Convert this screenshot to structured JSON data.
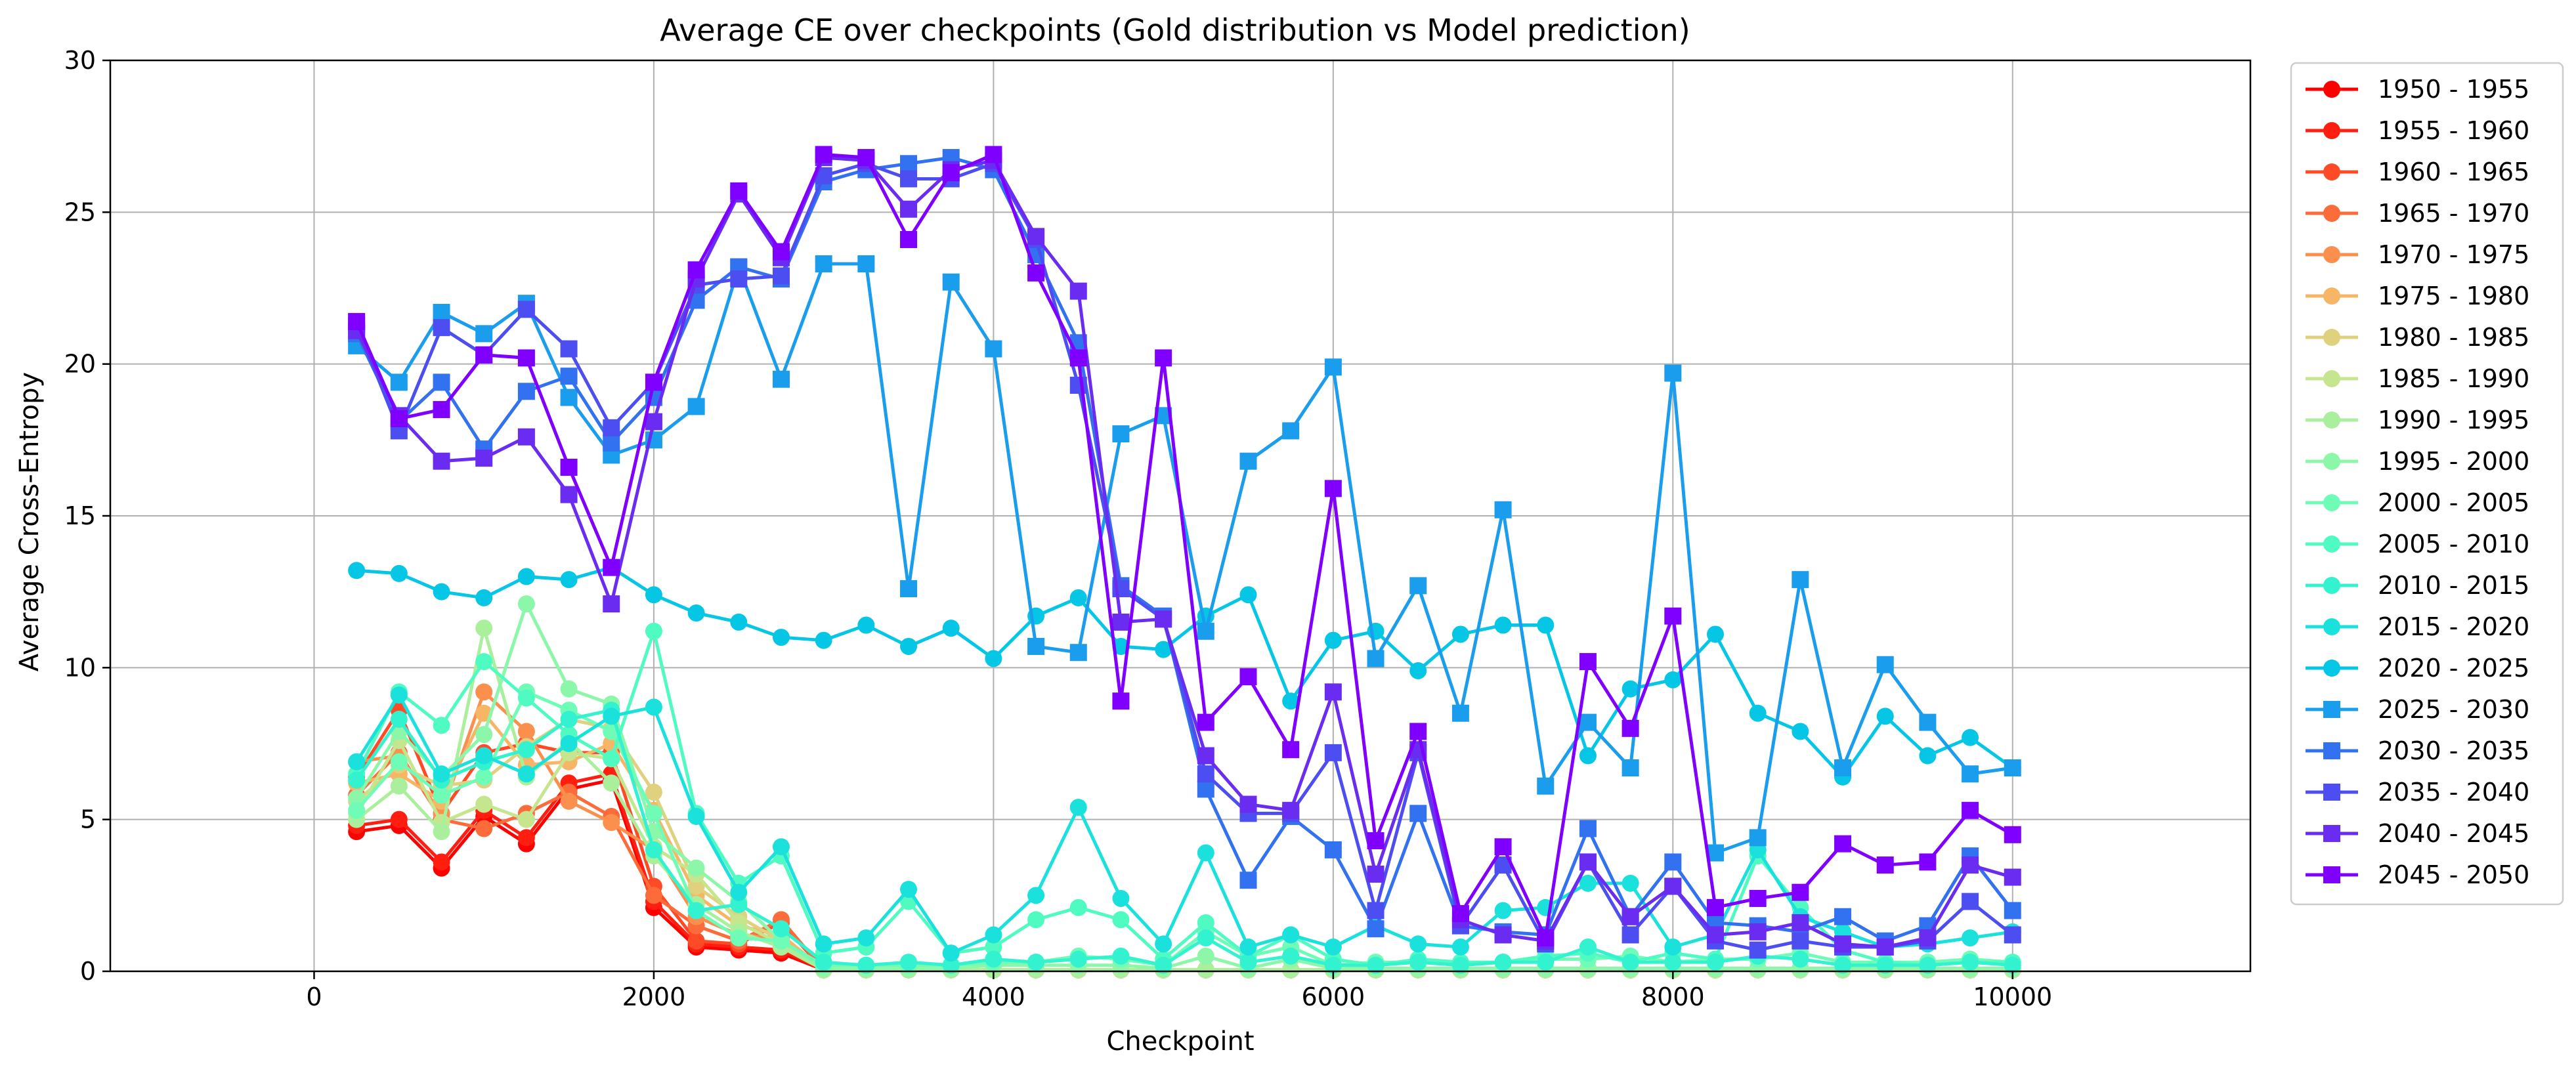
{
  "chart_data": {
    "type": "line",
    "title": "Average CE over checkpoints (Gold distribution vs Model prediction)",
    "xlabel": "Checkpoint",
    "ylabel": "Average Cross-Entropy",
    "xlim": [
      -1200,
      11400
    ],
    "ylim": [
      0,
      30
    ],
    "xticks": [
      0,
      2000,
      4000,
      6000,
      8000,
      10000
    ],
    "yticks": [
      0,
      5,
      10,
      15,
      20,
      25,
      30
    ],
    "grid": true,
    "legend_position": "outside-right",
    "x": [
      250,
      500,
      750,
      1000,
      1250,
      1500,
      1750,
      2000,
      2250,
      2500,
      2750,
      3000,
      3250,
      3500,
      3750,
      4000,
      4250,
      4500,
      4750,
      5000,
      5250,
      5500,
      5750,
      6000,
      6250,
      6500,
      6750,
      7000,
      7250,
      7500,
      7750,
      8000,
      8250,
      8500,
      8750,
      9000,
      9250,
      9500,
      9750,
      10000
    ],
    "series": [
      {
        "name": "1950 - 1955",
        "color": "#ff0000",
        "marker": "circle",
        "values": [
          4.6,
          4.8,
          3.4,
          5.1,
          4.2,
          6.0,
          6.3,
          2.1,
          0.8,
          0.7,
          0.6,
          0.05,
          0.05,
          0.05,
          0.05,
          0.05,
          0.05,
          0.05,
          0.05,
          0.05,
          0.05,
          0.05,
          0.05,
          0.05,
          0.05,
          0.05,
          0.05,
          0.05,
          0.05,
          0.05,
          0.05,
          0.05,
          0.05,
          0.05,
          0.05,
          0.05,
          0.05,
          0.05,
          0.05,
          0.05
        ]
      },
      {
        "name": "1955 - 1960",
        "color": "#ff1e10",
        "marker": "circle",
        "values": [
          4.8,
          5.0,
          3.6,
          5.3,
          4.4,
          6.2,
          6.5,
          2.3,
          0.9,
          0.8,
          0.7,
          0.05,
          0.05,
          0.05,
          0.05,
          0.05,
          0.05,
          0.05,
          0.05,
          0.05,
          0.05,
          0.05,
          0.05,
          0.05,
          0.05,
          0.05,
          0.05,
          0.05,
          0.05,
          0.05,
          0.05,
          0.05,
          0.05,
          0.05,
          0.05,
          0.05,
          0.05,
          0.05,
          0.05,
          0.05
        ]
      },
      {
        "name": "1960 - 1965",
        "color": "#ff4a26",
        "marker": "circle",
        "values": [
          6.4,
          8.6,
          5.2,
          7.2,
          7.5,
          7.2,
          7.2,
          2.8,
          1.0,
          0.9,
          1.6,
          0.05,
          0.05,
          0.05,
          0.05,
          0.05,
          0.05,
          0.05,
          0.05,
          0.05,
          0.05,
          0.05,
          0.05,
          0.05,
          0.05,
          0.05,
          0.05,
          0.05,
          0.05,
          0.05,
          0.05,
          0.05,
          0.05,
          0.05,
          0.05,
          0.05,
          0.05,
          0.05,
          0.05,
          0.05
        ]
      },
      {
        "name": "1965 - 1970",
        "color": "#fc6b3a",
        "marker": "circle",
        "values": [
          5.8,
          7.2,
          5.0,
          4.7,
          5.2,
          5.9,
          5.1,
          2.5,
          1.5,
          1.0,
          1.7,
          0.05,
          0.05,
          0.05,
          0.05,
          0.05,
          0.05,
          0.05,
          0.05,
          0.05,
          0.05,
          0.05,
          0.05,
          0.05,
          0.05,
          0.05,
          0.05,
          0.05,
          0.05,
          0.05,
          0.05,
          0.05,
          0.05,
          0.05,
          0.05,
          0.05,
          0.05,
          0.05,
          0.05,
          0.05
        ]
      },
      {
        "name": "1970 - 1975",
        "color": "#fb8f4e",
        "marker": "circle",
        "values": [
          6.9,
          7.1,
          5.2,
          9.2,
          7.9,
          5.6,
          4.9,
          4.0,
          1.8,
          1.2,
          1.1,
          0.05,
          0.05,
          0.05,
          0.05,
          0.05,
          0.05,
          0.05,
          0.05,
          0.05,
          0.05,
          0.05,
          0.05,
          0.05,
          0.05,
          0.05,
          0.05,
          0.05,
          0.05,
          0.05,
          0.05,
          0.05,
          0.05,
          0.05,
          0.05,
          0.05,
          0.05,
          0.05,
          0.05,
          0.05
        ]
      },
      {
        "name": "1975 - 1980",
        "color": "#f6b666",
        "marker": "circle",
        "values": [
          6.2,
          6.5,
          5.6,
          8.5,
          6.8,
          6.9,
          7.5,
          5.3,
          2.5,
          1.5,
          1.2,
          0.05,
          0.05,
          0.05,
          0.05,
          0.05,
          0.05,
          0.05,
          0.05,
          0.05,
          0.05,
          0.05,
          0.05,
          0.05,
          0.05,
          0.05,
          0.05,
          0.05,
          0.05,
          0.05,
          0.05,
          0.05,
          0.05,
          0.05,
          0.05,
          0.05,
          0.05,
          0.05,
          0.05,
          0.05
        ]
      },
      {
        "name": "1980 - 1985",
        "color": "#e0d17e",
        "marker": "circle",
        "values": [
          5.6,
          6.8,
          6.1,
          6.3,
          7.4,
          8.3,
          8.0,
          5.9,
          2.8,
          1.8,
          1.0,
          0.05,
          0.05,
          0.05,
          0.05,
          0.05,
          0.05,
          0.05,
          0.05,
          0.05,
          0.05,
          0.05,
          0.05,
          0.05,
          0.05,
          0.05,
          0.05,
          0.05,
          0.05,
          0.05,
          0.05,
          0.05,
          0.05,
          0.05,
          0.05,
          0.05,
          0.05,
          0.05,
          0.05,
          0.05
        ]
      },
      {
        "name": "1985 - 1990",
        "color": "#c5e68e",
        "marker": "circle",
        "values": [
          5.2,
          7.6,
          4.9,
          5.5,
          5.0,
          7.2,
          7.0,
          4.1,
          3.2,
          1.6,
          0.9,
          0.05,
          0.05,
          0.05,
          0.05,
          0.05,
          0.05,
          0.05,
          0.05,
          0.05,
          0.05,
          0.05,
          0.05,
          0.05,
          0.05,
          0.05,
          0.05,
          0.05,
          0.05,
          0.05,
          0.05,
          0.05,
          0.05,
          0.05,
          0.05,
          0.05,
          0.05,
          0.05,
          0.05,
          0.05
        ]
      },
      {
        "name": "1990 - 1995",
        "color": "#aaf09c",
        "marker": "circle",
        "values": [
          5.0,
          6.1,
          4.6,
          11.3,
          6.4,
          7.6,
          6.2,
          3.8,
          2.2,
          1.3,
          0.8,
          0.05,
          0.05,
          0.05,
          0.05,
          0.05,
          0.05,
          0.05,
          0.05,
          0.05,
          0.05,
          0.05,
          0.05,
          0.05,
          0.05,
          0.05,
          0.05,
          0.05,
          0.05,
          0.05,
          0.05,
          0.05,
          0.05,
          0.05,
          0.05,
          0.05,
          0.05,
          0.05,
          0.05,
          0.05
        ]
      },
      {
        "name": "1995 - 2000",
        "color": "#8cf7a8",
        "marker": "circle",
        "values": [
          5.7,
          7.9,
          6.4,
          7.8,
          12.1,
          9.3,
          8.8,
          4.6,
          3.4,
          2.3,
          1.0,
          0.1,
          0.1,
          0.1,
          0.1,
          0.2,
          0.2,
          0.2,
          0.2,
          0.1,
          0.5,
          0.1,
          0.4,
          0.1,
          0.1,
          0.1,
          0.1,
          0.1,
          0.1,
          0.1,
          0.1,
          0.1,
          0.1,
          0.1,
          0.1,
          0.1,
          0.1,
          0.1,
          0.1,
          0.1
        ]
      },
      {
        "name": "2000 - 2005",
        "color": "#6efcb6",
        "marker": "circle",
        "values": [
          5.3,
          6.9,
          5.8,
          6.4,
          9.2,
          8.6,
          7.9,
          5.2,
          2.0,
          1.1,
          1.0,
          0.2,
          0.2,
          0.2,
          0.2,
          0.3,
          0.3,
          0.5,
          0.4,
          0.2,
          1.3,
          0.5,
          0.8,
          0.2,
          0.3,
          0.3,
          0.2,
          0.3,
          0.4,
          0.4,
          0.5,
          0.3,
          0.4,
          0.4,
          0.6,
          0.3,
          0.3,
          0.3,
          0.4,
          0.3
        ]
      },
      {
        "name": "2005 - 2010",
        "color": "#50fbc2",
        "marker": "circle",
        "values": [
          6.5,
          9.2,
          8.1,
          10.2,
          9.0,
          7.8,
          7.0,
          11.2,
          5.2,
          2.9,
          3.8,
          0.6,
          0.8,
          2.3,
          0.6,
          0.8,
          1.7,
          2.1,
          1.7,
          0.4,
          1.6,
          0.5,
          1.2,
          0.4,
          0.2,
          0.4,
          0.3,
          0.3,
          0.5,
          0.6,
          0.3,
          0.6,
          0.4,
          3.8,
          2.1,
          0.7,
          0.3,
          0.2,
          0.3,
          0.3
        ]
      },
      {
        "name": "2010 - 2015",
        "color": "#32f2cf",
        "marker": "circle",
        "values": [
          6.3,
          8.3,
          6.3,
          6.9,
          7.3,
          8.3,
          8.6,
          4.0,
          2.0,
          2.2,
          1.4,
          0.3,
          0.2,
          0.3,
          0.2,
          0.4,
          0.3,
          0.4,
          0.5,
          0.2,
          1.1,
          0.3,
          0.5,
          0.2,
          0.2,
          0.3,
          0.2,
          0.3,
          0.3,
          0.8,
          0.3,
          0.3,
          0.3,
          0.5,
          0.4,
          0.2,
          0.2,
          0.2,
          0.3,
          0.2
        ]
      },
      {
        "name": "2015 - 2020",
        "color": "#1be1dd",
        "marker": "circle",
        "values": [
          6.9,
          9.1,
          6.5,
          7.1,
          6.5,
          7.5,
          8.4,
          8.7,
          5.1,
          2.6,
          4.1,
          0.9,
          1.1,
          2.7,
          0.6,
          1.2,
          2.5,
          5.4,
          2.4,
          0.9,
          3.9,
          0.8,
          1.2,
          0.8,
          1.5,
          0.9,
          0.8,
          2.0,
          2.1,
          2.9,
          2.9,
          0.8,
          1.2,
          4.0,
          1.8,
          1.3,
          0.8,
          0.9,
          1.1,
          1.3
        ]
      },
      {
        "name": "2020 - 2025",
        "color": "#06c6e6",
        "marker": "circle",
        "values": [
          13.2,
          13.1,
          12.5,
          12.3,
          13.0,
          12.9,
          13.3,
          12.4,
          11.8,
          11.5,
          11.0,
          10.9,
          11.4,
          10.7,
          11.3,
          10.3,
          11.7,
          12.3,
          10.7,
          10.6,
          11.7,
          12.4,
          8.9,
          10.9,
          11.2,
          9.9,
          11.1,
          11.4,
          11.4,
          7.1,
          9.3,
          9.6,
          11.1,
          8.5,
          7.9,
          6.4,
          8.4,
          7.1,
          7.7,
          6.7
        ]
      },
      {
        "name": "2025 - 2030",
        "color": "#1a9ded",
        "marker": "square",
        "values": [
          20.6,
          19.4,
          21.7,
          21.0,
          22.0,
          18.9,
          17.0,
          17.5,
          18.6,
          23.2,
          19.5,
          23.3,
          23.3,
          12.6,
          22.7,
          20.5,
          10.7,
          10.5,
          17.7,
          18.3,
          11.2,
          16.8,
          17.8,
          19.9,
          10.3,
          12.7,
          8.5,
          15.2,
          6.1,
          8.2,
          6.7,
          19.7,
          3.9,
          4.4,
          12.9,
          6.7,
          10.1,
          8.2,
          6.5,
          6.7
        ]
      },
      {
        "name": "2030 - 2035",
        "color": "#3272f0",
        "marker": "square",
        "values": [
          21.0,
          18.1,
          19.4,
          17.2,
          19.1,
          19.6,
          17.4,
          18.9,
          22.1,
          23.2,
          22.8,
          26.0,
          26.4,
          26.6,
          26.8,
          26.4,
          23.6,
          20.7,
          12.7,
          11.7,
          6.0,
          3.0,
          5.1,
          4.0,
          1.4,
          5.2,
          1.5,
          1.3,
          1.2,
          4.7,
          1.8,
          3.6,
          1.6,
          1.5,
          1.3,
          1.8,
          1.0,
          1.5,
          3.8,
          2.0
        ]
      },
      {
        "name": "2035 - 2040",
        "color": "#4d4ef1",
        "marker": "square",
        "values": [
          21.3,
          17.8,
          21.2,
          20.3,
          21.8,
          20.5,
          17.9,
          19.4,
          22.6,
          22.8,
          22.9,
          26.2,
          26.6,
          26.1,
          26.1,
          26.6,
          24.1,
          19.3,
          12.6,
          11.6,
          6.5,
          5.2,
          5.2,
          7.2,
          2.0,
          7.2,
          1.5,
          3.5,
          0.9,
          3.6,
          1.2,
          2.8,
          1.0,
          0.7,
          1.0,
          0.8,
          0.8,
          1.0,
          2.3,
          1.2
        ]
      },
      {
        "name": "2040 - 2045",
        "color": "#6a2cf1",
        "marker": "square",
        "values": [
          21.1,
          18.3,
          16.8,
          16.9,
          17.6,
          15.7,
          12.1,
          18.1,
          22.8,
          25.6,
          23.5,
          26.8,
          26.7,
          25.1,
          26.4,
          26.7,
          24.2,
          22.4,
          11.5,
          11.6,
          7.1,
          5.5,
          5.3,
          9.2,
          3.2,
          7.3,
          1.7,
          1.2,
          1.0,
          3.6,
          1.8,
          2.8,
          1.2,
          1.3,
          1.6,
          0.9,
          0.8,
          1.1,
          3.5,
          3.1
        ]
      },
      {
        "name": "2045 - 2050",
        "color": "#7f00ff",
        "marker": "square",
        "values": [
          21.4,
          18.2,
          18.5,
          20.3,
          20.2,
          16.6,
          13.3,
          19.4,
          23.1,
          25.7,
          23.7,
          26.9,
          26.8,
          24.1,
          26.3,
          26.9,
          23.0,
          20.2,
          8.9,
          20.2,
          8.2,
          9.7,
          7.3,
          15.9,
          4.3,
          7.9,
          1.9,
          4.1,
          1.1,
          10.2,
          8.0,
          11.7,
          2.1,
          2.4,
          2.6,
          4.2,
          3.5,
          3.6,
          5.3,
          4.5
        ]
      }
    ]
  }
}
